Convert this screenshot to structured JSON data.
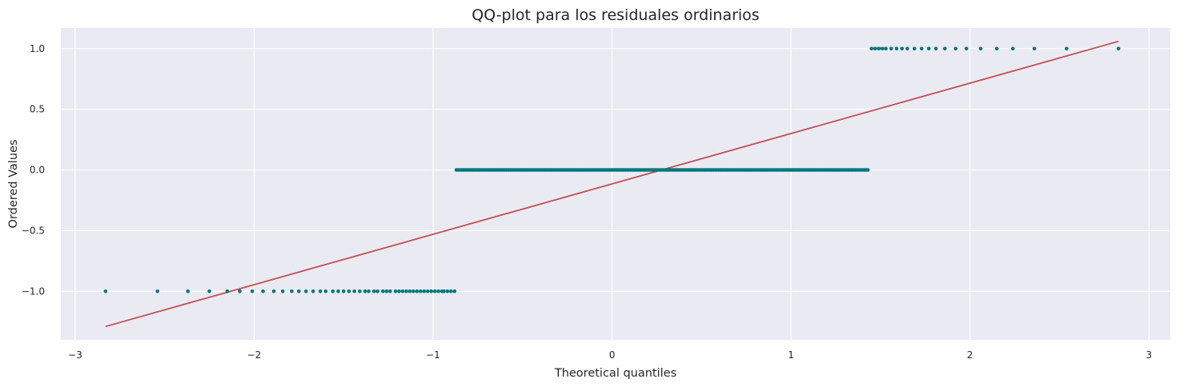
{
  "chart_data": {
    "type": "scatter",
    "title": "QQ-plot para los residuales ordinarios",
    "xlabel": "Theoretical quantiles",
    "ylabel": "Ordered Values",
    "xlim": [
      -3.08,
      3.12
    ],
    "ylim": [
      -1.4,
      1.17
    ],
    "xticks": [
      -3,
      -2,
      -1,
      0,
      1,
      2,
      3
    ],
    "xtick_labels": [
      "−3",
      "−2",
      "−1",
      "0",
      "1",
      "2",
      "3"
    ],
    "yticks": [
      -1.0,
      -0.5,
      0.0,
      0.5,
      1.0
    ],
    "ytick_labels": [
      "−1.0",
      "−0.5",
      "0.0",
      "0.5",
      "1.0"
    ],
    "grid": true,
    "background": "#eaeaf2",
    "grid_color": "#ffffff",
    "series": [
      {
        "kind": "points",
        "color": "#00767e",
        "groups": [
          {
            "y": -1.0,
            "x": [
              -2.83,
              -2.54,
              -2.37,
              -2.25,
              -2.15,
              -2.08,
              -2.01,
              -1.95,
              -1.89,
              -1.84,
              -1.79,
              -1.75,
              -1.71,
              -1.67,
              -1.63,
              -1.6,
              -1.56,
              -1.53,
              -1.5,
              -1.47,
              -1.44,
              -1.41,
              -1.38,
              -1.36,
              -1.33,
              -1.31,
              -1.28,
              -1.26,
              -1.24,
              -1.21,
              -1.19,
              -1.17,
              -1.15,
              -1.13,
              -1.11,
              -1.09,
              -1.07,
              -1.05,
              -1.03,
              -1.01,
              -0.99,
              -0.97,
              -0.95,
              -0.94,
              -0.92,
              -0.9,
              -0.88
            ],
            "note": ""
          },
          {
            "y": 0.0,
            "x_range": [
              -0.87,
              1.43
            ],
            "count": 230
          },
          {
            "y": 1.0,
            "x": [
              1.45,
              1.47,
              1.49,
              1.51,
              1.53,
              1.56,
              1.59,
              1.62,
              1.65,
              1.69,
              1.73,
              1.77,
              1.81,
              1.86,
              1.92,
              1.98,
              2.06,
              2.15,
              2.24,
              2.36,
              2.54,
              2.83
            ]
          }
        ]
      },
      {
        "kind": "line",
        "color": "#c44e52",
        "x": [
          -2.83,
          2.83
        ],
        "y": [
          -1.29,
          1.06
        ]
      }
    ]
  }
}
